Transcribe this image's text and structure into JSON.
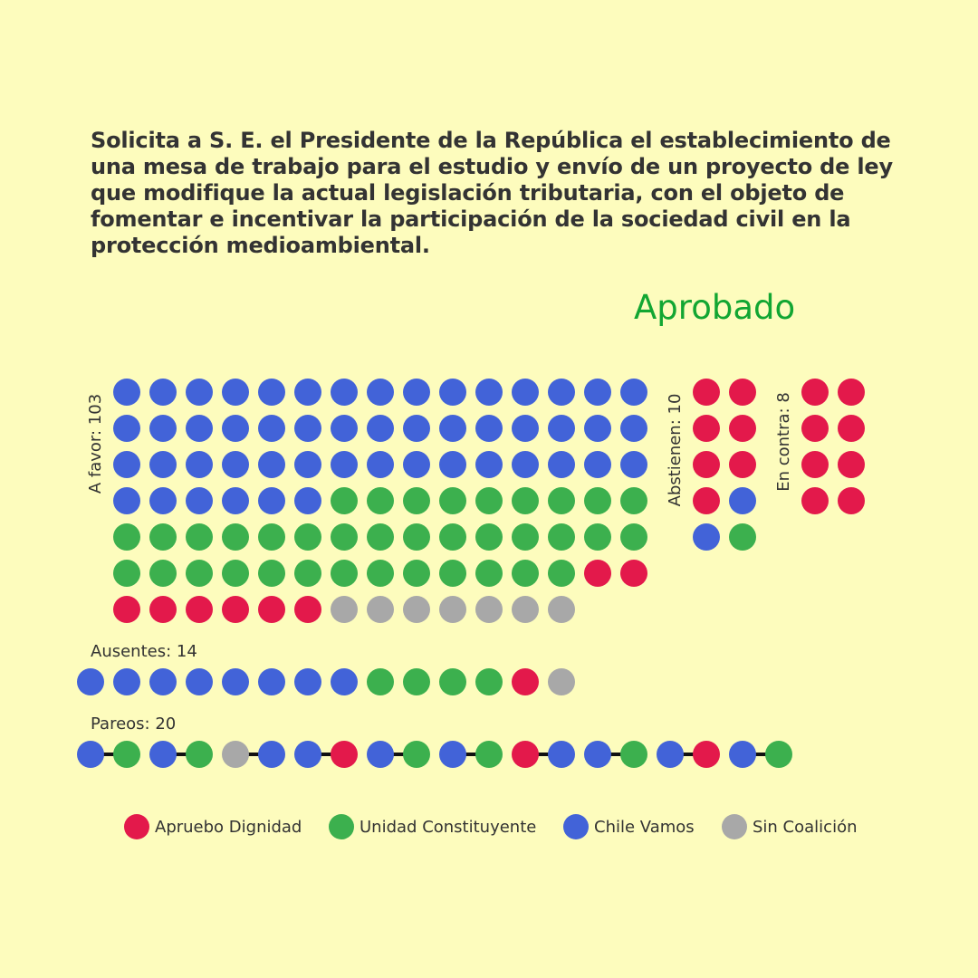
{
  "title": "Solicita a S. E. el Presidente de la República el establecimiento de una mesa de trabajo para el estudio y envío de un proyecto de ley que modifique la actual legislación tributaria, con el objeto de fomentar e incentivar la participación de la sociedad civil en la protección medioambiental.",
  "result": "Aprobado",
  "result_color": "#12a632",
  "background": "#fdfcbd",
  "chart_data": {
    "type": "dot-matrix",
    "coalitions": [
      {
        "key": "AD",
        "name": "Apruebo Dignidad",
        "color": "#e3194b"
      },
      {
        "key": "UC",
        "name": "Unidad Constituyente",
        "color": "#3cb04e"
      },
      {
        "key": "CV",
        "name": "Chile Vamos",
        "color": "#4263d8"
      },
      {
        "key": "SC",
        "name": "Sin Coalición",
        "color": "#a8a8a8"
      }
    ],
    "groups": [
      {
        "id": "favor",
        "label": "A favor: 103",
        "count": 103,
        "composition": [
          {
            "c": "CV",
            "n": 51
          },
          {
            "c": "UC",
            "n": 37
          },
          {
            "c": "AD",
            "n": 8
          },
          {
            "c": "SC",
            "n": 7
          }
        ]
      },
      {
        "id": "abstienen",
        "label": "Abstienen: 10",
        "count": 10,
        "composition": [
          {
            "c": "AD",
            "n": 7
          },
          {
            "c": "CV",
            "n": 2
          },
          {
            "c": "UC",
            "n": 1
          }
        ]
      },
      {
        "id": "contra",
        "label": "En contra: 8",
        "count": 8,
        "composition": [
          {
            "c": "AD",
            "n": 8
          }
        ]
      },
      {
        "id": "ausentes",
        "label": "Ausentes: 14",
        "count": 14,
        "composition": [
          {
            "c": "CV",
            "n": 8
          },
          {
            "c": "UC",
            "n": 4
          },
          {
            "c": "AD",
            "n": 1
          },
          {
            "c": "SC",
            "n": 1
          }
        ]
      },
      {
        "id": "pareos",
        "label": "Pareos: 20",
        "count": 20,
        "sequence": [
          "CV",
          "UC",
          "CV",
          "UC",
          "SC",
          "CV",
          "CV",
          "AD",
          "CV",
          "UC",
          "CV",
          "UC",
          "AD",
          "CV",
          "CV",
          "UC",
          "CV",
          "AD",
          "CV",
          "UC"
        ]
      }
    ]
  }
}
